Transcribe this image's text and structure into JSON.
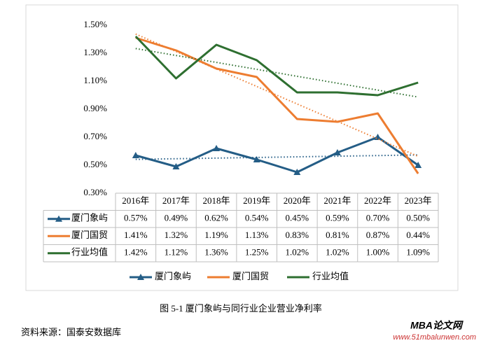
{
  "chart_data": {
    "type": "line",
    "categories": [
      "2016年",
      "2017年",
      "2018年",
      "2019年",
      "2020年",
      "2021年",
      "2022年",
      "2023年"
    ],
    "series": [
      {
        "name": "厦门象屿",
        "color": "#245d86",
        "marker": "triangle",
        "values": [
          0.57,
          0.49,
          0.62,
          0.54,
          0.45,
          0.59,
          0.7,
          0.5
        ],
        "value_labels": [
          "0.57%",
          "0.49%",
          "0.62%",
          "0.54%",
          "0.45%",
          "0.59%",
          "0.70%",
          "0.50%"
        ]
      },
      {
        "name": "厦门国贸",
        "color": "#ed7d31",
        "marker": "none",
        "values": [
          1.41,
          1.32,
          1.19,
          1.13,
          0.83,
          0.81,
          0.87,
          0.44
        ],
        "value_labels": [
          "1.41%",
          "1.32%",
          "1.19%",
          "1.13%",
          "0.83%",
          "0.81%",
          "0.87%",
          "0.44%"
        ]
      },
      {
        "name": "行业均值",
        "color": "#2e6f30",
        "marker": "none",
        "values": [
          1.42,
          1.12,
          1.36,
          1.25,
          1.02,
          1.02,
          1.0,
          1.09
        ],
        "value_labels": [
          "1.42%",
          "1.12%",
          "1.36%",
          "1.25%",
          "1.02%",
          "1.02%",
          "1.00%",
          "1.09%"
        ]
      }
    ],
    "ylim": [
      0.3,
      1.5
    ],
    "yticks": [
      {
        "value": 0.3,
        "label": "0.30%"
      },
      {
        "value": 0.5,
        "label": "0.50%"
      },
      {
        "value": 0.7,
        "label": "0.70%"
      },
      {
        "value": 0.9,
        "label": "0.90%"
      },
      {
        "value": 1.1,
        "label": "1.10%"
      },
      {
        "value": 1.3,
        "label": "1.30%"
      },
      {
        "value": 1.5,
        "label": "1.50%"
      }
    ],
    "grid": false,
    "trendline": true,
    "data_table": true,
    "legend": "bottom"
  },
  "caption": "图 5-1  厦门象屿与同行业企业营业净利率",
  "source": "资料来源：国泰安数据库",
  "watermark": {
    "title": "MBA论文网",
    "url": "www.51mbalunwen.com"
  }
}
